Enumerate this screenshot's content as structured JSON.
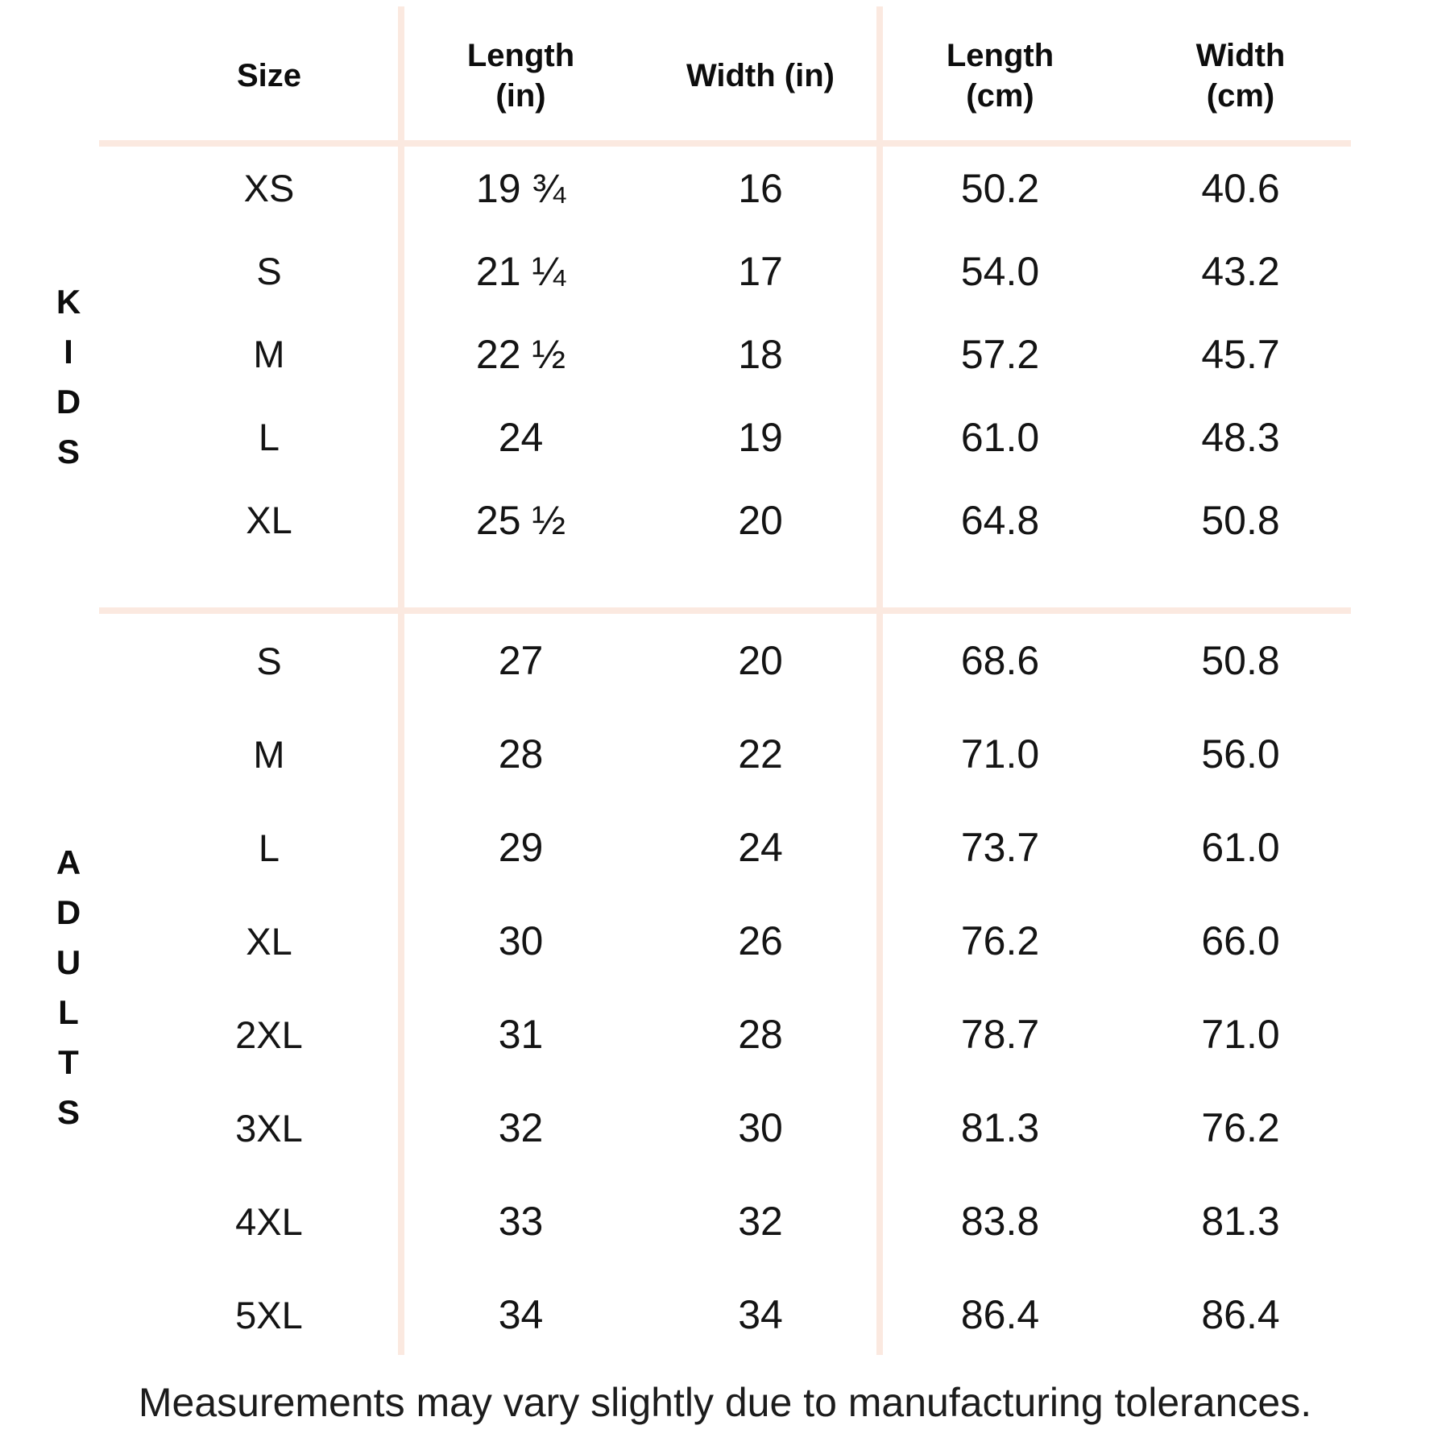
{
  "colors": {
    "background": "#ffffff",
    "divider": "#fbe9e0",
    "text": "#141414"
  },
  "table": {
    "headers": {
      "size": "Size",
      "length_in": "Length\n(in)",
      "width_in": "Width (in)",
      "length_cm": "Length\n(cm)",
      "width_cm": "Width\n(cm)"
    },
    "sections": [
      {
        "group": "KIDS",
        "rows": [
          {
            "size": "XS",
            "length_in": "19 ¾",
            "width_in": "16",
            "length_cm": "50.2",
            "width_cm": "40.6"
          },
          {
            "size": "S",
            "length_in": "21 ¼",
            "width_in": "17",
            "length_cm": "54.0",
            "width_cm": "43.2"
          },
          {
            "size": "M",
            "length_in": "22 ½",
            "width_in": "18",
            "length_cm": "57.2",
            "width_cm": "45.7"
          },
          {
            "size": "L",
            "length_in": "24",
            "width_in": "19",
            "length_cm": "61.0",
            "width_cm": "48.3"
          },
          {
            "size": "XL",
            "length_in": "25 ½",
            "width_in": "20",
            "length_cm": "64.8",
            "width_cm": "50.8"
          }
        ]
      },
      {
        "group": "ADULTS",
        "rows": [
          {
            "size": "S",
            "length_in": "27",
            "width_in": "20",
            "length_cm": "68.6",
            "width_cm": "50.8"
          },
          {
            "size": "M",
            "length_in": "28",
            "width_in": "22",
            "length_cm": "71.0",
            "width_cm": "56.0"
          },
          {
            "size": "L",
            "length_in": "29",
            "width_in": "24",
            "length_cm": "73.7",
            "width_cm": "61.0"
          },
          {
            "size": "XL",
            "length_in": "30",
            "width_in": "26",
            "length_cm": "76.2",
            "width_cm": "66.0"
          },
          {
            "size": "2XL",
            "length_in": "31",
            "width_in": "28",
            "length_cm": "78.7",
            "width_cm": "71.0"
          },
          {
            "size": "3XL",
            "length_in": "32",
            "width_in": "30",
            "length_cm": "81.3",
            "width_cm": "76.2"
          },
          {
            "size": "4XL",
            "length_in": "33",
            "width_in": "32",
            "length_cm": "83.8",
            "width_cm": "81.3"
          },
          {
            "size": "5XL",
            "length_in": "34",
            "width_in": "34",
            "length_cm": "86.4",
            "width_cm": "86.4"
          }
        ]
      }
    ]
  },
  "footer": {
    "note": "Measurements may vary slightly due to manufacturing tolerances."
  }
}
